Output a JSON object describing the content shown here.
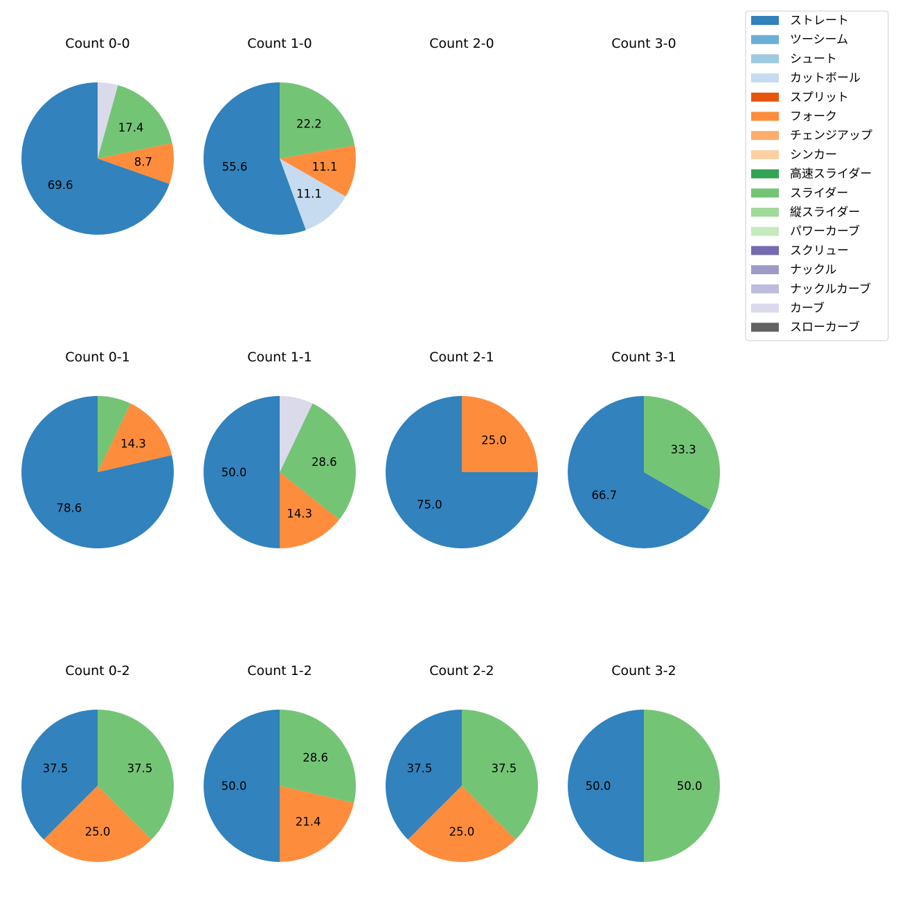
{
  "chart_data": {
    "type": "pie",
    "legend": {
      "placement": "top-right",
      "entries": [
        {
          "name": "ストレート",
          "color": "#3182bd"
        },
        {
          "name": "ツーシーム",
          "color": "#6baed6"
        },
        {
          "name": "シュート",
          "color": "#9ecae1"
        },
        {
          "name": "カットボール",
          "color": "#c6dbef"
        },
        {
          "name": "スプリット",
          "color": "#e6550d"
        },
        {
          "name": "フォーク",
          "color": "#fd8d3c"
        },
        {
          "name": "チェンジアップ",
          "color": "#fdae6b"
        },
        {
          "name": "シンカー",
          "color": "#fdd0a2"
        },
        {
          "name": "高速スライダー",
          "color": "#31a354"
        },
        {
          "name": "スライダー",
          "color": "#74c476"
        },
        {
          "name": "縦スライダー",
          "color": "#a1d99b"
        },
        {
          "name": "パワーカーブ",
          "color": "#c7e9c0"
        },
        {
          "name": "スクリュー",
          "color": "#756bb1"
        },
        {
          "name": "ナックル",
          "color": "#9e9ac8"
        },
        {
          "name": "ナックルカーブ",
          "color": "#bcbddc"
        },
        {
          "name": "カーブ",
          "color": "#dadaeb"
        },
        {
          "name": "スローカーブ",
          "color": "#636363"
        }
      ]
    },
    "pies": [
      {
        "title": "Count 0-0",
        "slices": [
          {
            "pitch": "ストレート",
            "value": 69.6,
            "label": "69.6"
          },
          {
            "pitch": "フォーク",
            "value": 8.7,
            "label": "8.7"
          },
          {
            "pitch": "スライダー",
            "value": 17.4,
            "label": "17.4"
          },
          {
            "pitch": "カーブ",
            "value": 4.3,
            "label": ""
          }
        ]
      },
      {
        "title": "Count 1-0",
        "slices": [
          {
            "pitch": "ストレート",
            "value": 55.6,
            "label": "55.6"
          },
          {
            "pitch": "カットボール",
            "value": 11.1,
            "label": "11.1"
          },
          {
            "pitch": "フォーク",
            "value": 11.1,
            "label": "11.1"
          },
          {
            "pitch": "スライダー",
            "value": 22.2,
            "label": "22.2"
          }
        ]
      },
      {
        "title": "Count 2-0",
        "slices": []
      },
      {
        "title": "Count 3-0",
        "slices": []
      },
      {
        "title": "Count 0-1",
        "slices": [
          {
            "pitch": "ストレート",
            "value": 78.6,
            "label": "78.6"
          },
          {
            "pitch": "フォーク",
            "value": 14.3,
            "label": "14.3"
          },
          {
            "pitch": "スライダー",
            "value": 7.1,
            "label": ""
          }
        ]
      },
      {
        "title": "Count 1-1",
        "slices": [
          {
            "pitch": "ストレート",
            "value": 50.0,
            "label": "50.0"
          },
          {
            "pitch": "フォーク",
            "value": 14.3,
            "label": "14.3"
          },
          {
            "pitch": "スライダー",
            "value": 28.6,
            "label": "28.6"
          },
          {
            "pitch": "カーブ",
            "value": 7.1,
            "label": ""
          }
        ]
      },
      {
        "title": "Count 2-1",
        "slices": [
          {
            "pitch": "ストレート",
            "value": 75.0,
            "label": "75.0"
          },
          {
            "pitch": "フォーク",
            "value": 25.0,
            "label": "25.0"
          }
        ]
      },
      {
        "title": "Count 3-1",
        "slices": [
          {
            "pitch": "ストレート",
            "value": 66.7,
            "label": "66.7"
          },
          {
            "pitch": "スライダー",
            "value": 33.3,
            "label": "33.3"
          }
        ]
      },
      {
        "title": "Count 0-2",
        "slices": [
          {
            "pitch": "ストレート",
            "value": 37.5,
            "label": "37.5"
          },
          {
            "pitch": "フォーク",
            "value": 25.0,
            "label": "25.0"
          },
          {
            "pitch": "スライダー",
            "value": 37.5,
            "label": "37.5"
          }
        ]
      },
      {
        "title": "Count 1-2",
        "slices": [
          {
            "pitch": "ストレート",
            "value": 50.0,
            "label": "50.0"
          },
          {
            "pitch": "フォーク",
            "value": 21.4,
            "label": "21.4"
          },
          {
            "pitch": "スライダー",
            "value": 28.6,
            "label": "28.6"
          }
        ]
      },
      {
        "title": "Count 2-2",
        "slices": [
          {
            "pitch": "ストレート",
            "value": 37.5,
            "label": "37.5"
          },
          {
            "pitch": "フォーク",
            "value": 25.0,
            "label": "25.0"
          },
          {
            "pitch": "スライダー",
            "value": 37.5,
            "label": "37.5"
          }
        ]
      },
      {
        "title": "Count 3-2",
        "slices": [
          {
            "pitch": "ストレート",
            "value": 50.0,
            "label": "50.0"
          },
          {
            "pitch": "スライダー",
            "value": 50.0,
            "label": "50.0"
          }
        ]
      }
    ]
  }
}
